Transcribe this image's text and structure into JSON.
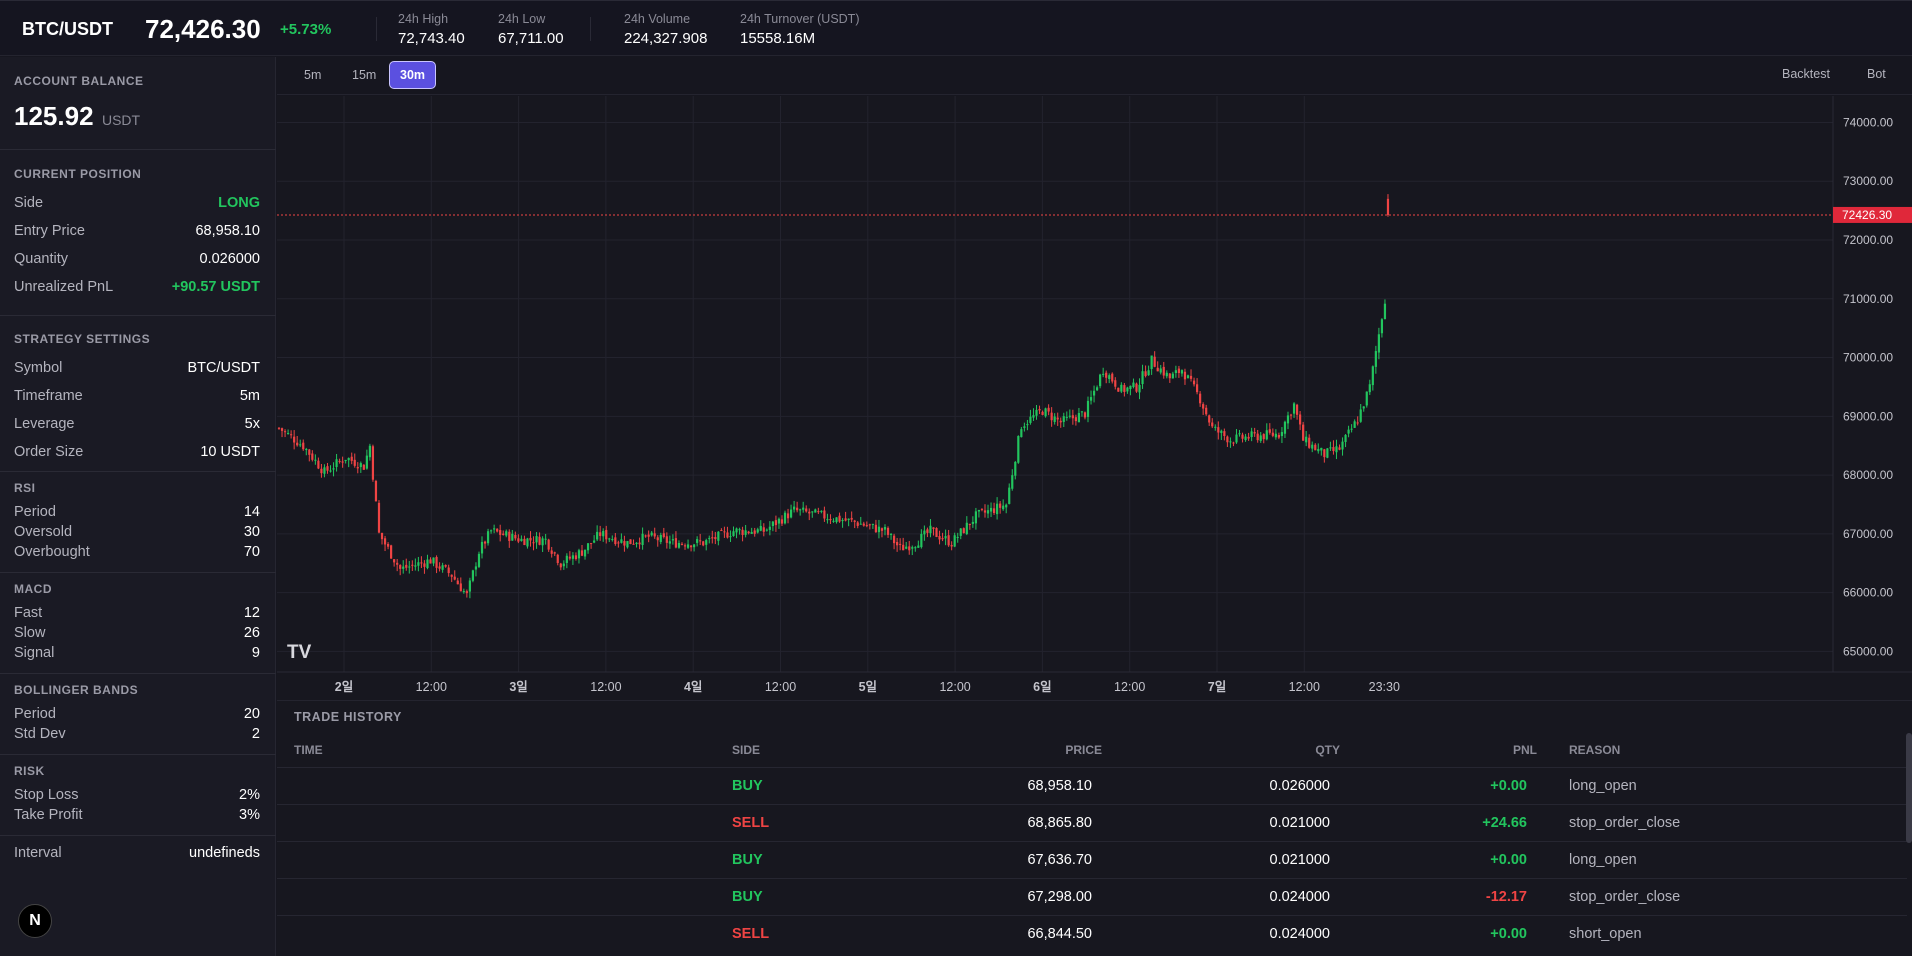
{
  "header": {
    "symbol": "BTC/USDT",
    "last_price": "72,426.30",
    "change": "+5.73%",
    "stats": [
      {
        "label": "24h High",
        "value": "72,743.40"
      },
      {
        "label": "24h Low",
        "value": "67,711.00"
      },
      {
        "label": "24h Volume",
        "value": "224,327.908"
      },
      {
        "label": "24h Turnover (USDT)",
        "value": "15558.16M"
      }
    ]
  },
  "sidebar": {
    "balance": {
      "title": "ACCOUNT BALANCE",
      "amount": "125.92",
      "currency": "USDT"
    },
    "position": {
      "title": "CURRENT POSITION",
      "rows": [
        {
          "k": "Side",
          "v": "LONG"
        },
        {
          "k": "Entry Price",
          "v": "68,958.10"
        },
        {
          "k": "Quantity",
          "v": "0.026000"
        },
        {
          "k": "Unrealized PnL",
          "v": "+90.57 USDT"
        }
      ]
    },
    "strategy": {
      "title": "STRATEGY SETTINGS",
      "rows": [
        {
          "k": "Symbol",
          "v": "BTC/USDT"
        },
        {
          "k": "Timeframe",
          "v": "5m"
        },
        {
          "k": "Leverage",
          "v": "5x"
        },
        {
          "k": "Order Size",
          "v": "10 USDT"
        }
      ]
    },
    "rsi": {
      "title": "RSI",
      "rows": [
        {
          "k": "Period",
          "v": "14"
        },
        {
          "k": "Oversold",
          "v": "30"
        },
        {
          "k": "Overbought",
          "v": "70"
        }
      ]
    },
    "macd": {
      "title": "MACD",
      "rows": [
        {
          "k": "Fast",
          "v": "12"
        },
        {
          "k": "Slow",
          "v": "26"
        },
        {
          "k": "Signal",
          "v": "9"
        }
      ]
    },
    "bollinger": {
      "title": "BOLLINGER BANDS",
      "rows": [
        {
          "k": "Period",
          "v": "20"
        },
        {
          "k": "Std Dev",
          "v": "2"
        }
      ]
    },
    "risk": {
      "title": "RISK",
      "rows": [
        {
          "k": "Stop Loss",
          "v": "2%"
        },
        {
          "k": "Take Profit",
          "v": "3%"
        }
      ]
    },
    "interval": {
      "k": "Interval",
      "v": "undefineds"
    },
    "logo": "N"
  },
  "toolbar": {
    "timeframes": [
      "5m",
      "15m",
      "30m"
    ],
    "active_timeframe": "30m",
    "backtest": "Backtest",
    "bot": "Bot"
  },
  "chart": {
    "y_ticks": [
      "74000.00",
      "73000.00",
      "72000.00",
      "71000.00",
      "70000.00",
      "69000.00",
      "68000.00",
      "67000.00",
      "66000.00",
      "65000.00"
    ],
    "x_ticks": [
      "2일",
      "12:00",
      "3일",
      "12:00",
      "4일",
      "12:00",
      "5일",
      "12:00",
      "6일",
      "12:00",
      "7일",
      "12:00",
      "23:30"
    ],
    "current_price_label": "72426.30",
    "watermark": "TV",
    "up_color": "#22c55e",
    "down_color": "#ef4444"
  },
  "chart_data": {
    "type": "candlestick",
    "ylim": [
      64650,
      74450
    ],
    "current_price": 72426.3,
    "anchors": [
      [
        0,
        68800
      ],
      [
        8,
        68500
      ],
      [
        15,
        68050
      ],
      [
        22,
        68300
      ],
      [
        28,
        68150
      ],
      [
        30,
        68500
      ],
      [
        33,
        67000
      ],
      [
        40,
        66400
      ],
      [
        50,
        66550
      ],
      [
        57,
        66300
      ],
      [
        62,
        65950
      ],
      [
        66,
        66700
      ],
      [
        70,
        67050
      ],
      [
        80,
        66900
      ],
      [
        88,
        66900
      ],
      [
        93,
        66500
      ],
      [
        100,
        66700
      ],
      [
        106,
        67000
      ],
      [
        115,
        66850
      ],
      [
        122,
        66950
      ],
      [
        130,
        66850
      ],
      [
        140,
        66850
      ],
      [
        150,
        67050
      ],
      [
        160,
        67050
      ],
      [
        170,
        67400
      ],
      [
        180,
        67300
      ],
      [
        190,
        67200
      ],
      [
        200,
        67050
      ],
      [
        205,
        66750
      ],
      [
        210,
        66850
      ],
      [
        215,
        67050
      ],
      [
        222,
        66850
      ],
      [
        230,
        67300
      ],
      [
        240,
        67500
      ],
      [
        245,
        68850
      ],
      [
        252,
        69100
      ],
      [
        258,
        68900
      ],
      [
        266,
        69050
      ],
      [
        272,
        69800
      ],
      [
        278,
        69450
      ],
      [
        283,
        69500
      ],
      [
        288,
        69950
      ],
      [
        294,
        69650
      ],
      [
        298,
        69800
      ],
      [
        304,
        69300
      ],
      [
        308,
        68800
      ],
      [
        314,
        68600
      ],
      [
        320,
        68650
      ],
      [
        330,
        68700
      ],
      [
        335,
        69200
      ],
      [
        338,
        68600
      ],
      [
        345,
        68350
      ],
      [
        350,
        68450
      ],
      [
        356,
        68950
      ],
      [
        360,
        69500
      ],
      [
        363,
        70400
      ],
      [
        365,
        71000
      ],
      [
        366,
        72426
      ]
    ]
  },
  "history": {
    "title": "TRADE HISTORY",
    "columns": [
      "TIME",
      "SIDE",
      "PRICE",
      "QTY",
      "PNL",
      "REASON"
    ],
    "rows": [
      {
        "time": "",
        "side": "BUY",
        "price": "68,958.10",
        "qty": "0.026000",
        "pnl": "+0.00",
        "reason": "long_open"
      },
      {
        "time": "",
        "side": "SELL",
        "price": "68,865.80",
        "qty": "0.021000",
        "pnl": "+24.66",
        "reason": "stop_order_close"
      },
      {
        "time": "",
        "side": "BUY",
        "price": "67,636.70",
        "qty": "0.021000",
        "pnl": "+0.00",
        "reason": "long_open"
      },
      {
        "time": "",
        "side": "BUY",
        "price": "67,298.00",
        "qty": "0.024000",
        "pnl": "-12.17",
        "reason": "stop_order_close"
      },
      {
        "time": "",
        "side": "SELL",
        "price": "66,844.50",
        "qty": "0.024000",
        "pnl": "+0.00",
        "reason": "short_open"
      }
    ]
  }
}
